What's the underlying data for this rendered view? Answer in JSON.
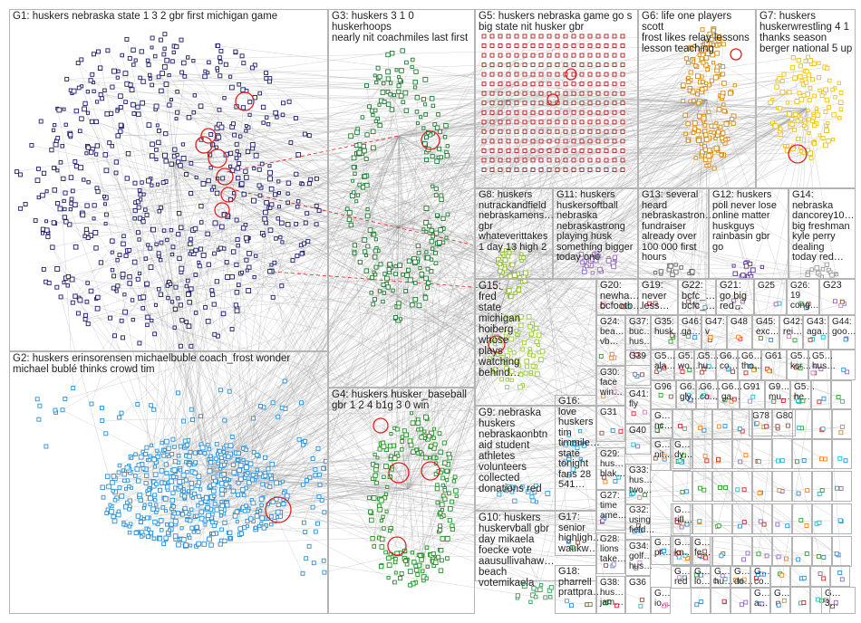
{
  "colors": {
    "G1": "#1b1b6e",
    "G2": "#2a8fd6",
    "G3": "#1e7a2e",
    "G4": "#1f8f23",
    "G5": "#b01818",
    "G6": "#d88a0c",
    "G7": "#f0c40a",
    "G8": "#8dbb2a",
    "G9": "#2a9fd6",
    "G10": "#31a354",
    "G11": "#9467bd",
    "G12": "#5a2fa0",
    "G13": "#666666",
    "G14": "#9a9a9a",
    "G15": "#9acd32",
    "edge": "#9a9a9a",
    "self_loop": "#e02020",
    "panel_border": "#b4b4b4"
  },
  "groups": [
    {
      "id": "G1",
      "label": "G1: huskers nebraska state 1 3 2 gbr first michigan game"
    },
    {
      "id": "G2",
      "label": "G2: huskers erinsorensen michaelbuble coach_frost wonder\nmichael bublé thinks crowd tim"
    },
    {
      "id": "G3",
      "label": "G3: huskers 3 1 0 huskerhoops\nnearly nit coachmiles last first"
    },
    {
      "id": "G4",
      "label": "G4: huskers husker_baseball\ngbr 1 2 4 b1g 3 0 win"
    },
    {
      "id": "G5",
      "label": "G5: huskers nebraska game go s\nbig state nit husker gbr"
    },
    {
      "id": "G6",
      "label": "G6: life one players scott\nfrost likes relay lessons\nlesson teaching"
    },
    {
      "id": "G7",
      "label": "G7: huskers\nhuskerwrestling 4 1\nthanks season\nberger national 5 up"
    },
    {
      "id": "G8",
      "label": "G8: huskers\nnutrackandfield\nnebraskamens…\ngbr\nwhateverittakes\n1 day 13 high 2"
    },
    {
      "id": "G11",
      "label": "G11: huskers\nhuskersoftball\nnebraska\nnebraskastrong\nplaying husk\nsomething bigger\ntoday one"
    },
    {
      "id": "G13",
      "label": "G13: several\nheard\nnebraskastron…\nfundraiser\nalready over\n100 000 first\nhours"
    },
    {
      "id": "G12",
      "label": "G12: huskers\npoll never lose\nonline matter\nhuskguys\nrainbasin gbr\ngo"
    },
    {
      "id": "G14",
      "label": "G14:\nnebraska\ndancorey10…\nbig freshman\nkyle perry\ndealing\ntoday red…"
    },
    {
      "id": "G15",
      "label": "G15:\nfred\nstate\nmichigan\nhoiberg\nwhose\nplays\nwatching\nbehind…"
    },
    {
      "id": "G20",
      "label": "G20:\nnewha…\nbcfootb…"
    },
    {
      "id": "G19",
      "label": "G19:\nnever\nless…"
    },
    {
      "id": "G22",
      "label": "G22:\nbcfc_…\nbcfc_…"
    },
    {
      "id": "G21",
      "label": "G21:\ngo big\nred…"
    },
    {
      "id": "G25",
      "label": "G25"
    },
    {
      "id": "G26",
      "label": "G26:\n19\ncong…"
    },
    {
      "id": "G23",
      "label": "G23"
    },
    {
      "id": "G9",
      "label": "G9: nebraska\nhuskers\nnebraskaonbtn\naid student\nathletes\nvolunteers\ncollected\ndonations red"
    },
    {
      "id": "G16",
      "label": "G16:\nlove\nhuskers\ntim\ntimmile…\nstate\ntonight\nfans 28\n541…"
    },
    {
      "id": "G10",
      "label": "G10: huskers\nhuskervball gbr\nday mikaela\nfoecke vote\naausullivahaw…\nbeach\nvotemikaela"
    },
    {
      "id": "G17",
      "label": "G17:\nsenior\nhighligh…\nwaukw…"
    },
    {
      "id": "G18",
      "label": "G18:\npharrell\nprattpra…"
    },
    {
      "id": "G24",
      "label": "G24:\nbea…\nvb…"
    },
    {
      "id": "G37",
      "label": "G37:\nbuc…\nhus…"
    },
    {
      "id": "G35",
      "label": "G35:\nhusk…"
    },
    {
      "id": "G46",
      "label": "G46:\nga…"
    },
    {
      "id": "G47",
      "label": "G47:\nv"
    },
    {
      "id": "G48",
      "label": "G48"
    },
    {
      "id": "G45",
      "label": "G45:\nexc…"
    },
    {
      "id": "G42",
      "label": "G42:\nrei…"
    },
    {
      "id": "G43",
      "label": "G43:\naga…"
    },
    {
      "id": "G44",
      "label": "G44:\ngoo…"
    },
    {
      "id": "G30",
      "label": "G30:\nface\nwin…"
    },
    {
      "id": "G39",
      "label": "G39"
    },
    {
      "id": "G5x",
      "label": "G5…\nala…"
    },
    {
      "id": "G5y",
      "label": "G5…\nwo…"
    },
    {
      "id": "G5z",
      "label": "G5…\nhu…"
    },
    {
      "id": "G6a",
      "label": "G6…\nco…"
    },
    {
      "id": "G6b",
      "label": "G6…\ntho…"
    },
    {
      "id": "G61",
      "label": "G61"
    },
    {
      "id": "G5w",
      "label": "G5…\nkcr…"
    },
    {
      "id": "G5v",
      "label": "G5…\nhus…"
    },
    {
      "id": "G41",
      "label": "G41:\nfly"
    },
    {
      "id": "G96",
      "label": "G96"
    },
    {
      "id": "G6c",
      "label": "G6…\ngly…"
    },
    {
      "id": "G6d",
      "label": "G6…\nco…"
    },
    {
      "id": "G6e",
      "label": "G6…\nga…"
    },
    {
      "id": "G91",
      "label": "G91"
    },
    {
      "id": "G9a",
      "label": "G9…\nmu…"
    },
    {
      "id": "G5u",
      "label": "G5…\nhe…"
    },
    {
      "id": "G31",
      "label": "G31"
    },
    {
      "id": "G78",
      "label": "G78"
    },
    {
      "id": "G80",
      "label": "G80"
    },
    {
      "id": "G40",
      "label": "G40"
    },
    {
      "id": "G29",
      "label": "G29:\nhus…\nblak…"
    },
    {
      "id": "G33",
      "label": "G33:\nhus…\ntwo…"
    },
    {
      "id": "G27",
      "label": "G27:\ntime\name…"
    },
    {
      "id": "G32",
      "label": "G32:\nusing\nfield…"
    },
    {
      "id": "G28",
      "label": "G28:\nlions\ntake…"
    },
    {
      "id": "G34",
      "label": "G34:\ngolf…\nhus…"
    },
    {
      "id": "G38",
      "label": "G38:\nhus…\njam…"
    },
    {
      "id": "G36",
      "label": "G36"
    },
    {
      "id": "Gn1",
      "label": "G…\nnc…"
    },
    {
      "id": "Gn2",
      "label": "G…\nnit…"
    },
    {
      "id": "Gn3",
      "label": "G…\ndy…"
    },
    {
      "id": "Gn4",
      "label": "G…\nrifl…"
    },
    {
      "id": "Gn5",
      "label": "G…\npr…"
    },
    {
      "id": "Gn6",
      "label": "G…\nkn…"
    },
    {
      "id": "Gn7",
      "label": "G…\nfe…"
    },
    {
      "id": "Gn8",
      "label": "G…\nred"
    },
    {
      "id": "Gn9",
      "label": "G…\nio…"
    },
    {
      "id": "Gn10",
      "label": "G…\nlo…"
    },
    {
      "id": "Gn11",
      "label": "G…\nhu…"
    },
    {
      "id": "Gn12",
      "label": "G…\nde…"
    },
    {
      "id": "Gn13",
      "label": "G…\nco…"
    },
    {
      "id": "Gn14",
      "label": "G…\n3…"
    },
    {
      "id": "Gn15",
      "label": "G…\na…"
    },
    {
      "id": "Gn16",
      "label": "G…"
    }
  ]
}
